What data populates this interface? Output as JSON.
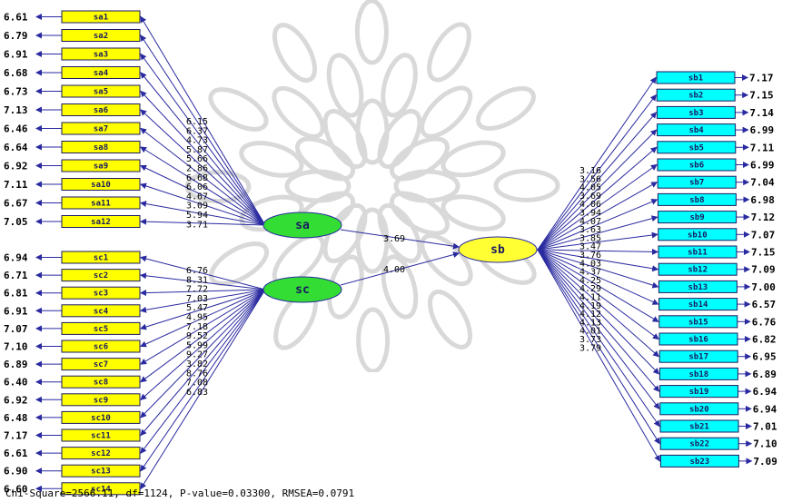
{
  "colors": {
    "sa_box": "#ffff00",
    "sc_box": "#ffff00",
    "sb_box": "#00ffff",
    "sa_node": "#33dd33",
    "sc_node": "#33dd33",
    "sb_node": "#ffff33",
    "arrow": "#2a2aa0",
    "watermark": "#d9d9d9"
  },
  "latents": {
    "sa": "sa",
    "sc": "sc",
    "sb": "sb"
  },
  "paths": {
    "sa_sb": "3.69",
    "sc_sb": "4.00"
  },
  "sa_items": [
    {
      "label": "sa1",
      "error": "6.61",
      "coef": "6.15"
    },
    {
      "label": "sa2",
      "error": "6.79",
      "coef": "6.37"
    },
    {
      "label": "sa3",
      "error": "6.91",
      "coef": "4.73"
    },
    {
      "label": "sa4",
      "error": "6.68",
      "coef": "5.87"
    },
    {
      "label": "sa5",
      "error": "6.73",
      "coef": "5.66"
    },
    {
      "label": "sa6",
      "error": "7.13",
      "coef": "2.86"
    },
    {
      "label": "sa7",
      "error": "6.46",
      "coef": "6.68"
    },
    {
      "label": "sa8",
      "error": "6.64",
      "coef": "6.06"
    },
    {
      "label": "sa9",
      "error": "6.92",
      "coef": "4.67"
    },
    {
      "label": "sa10",
      "error": "7.11",
      "coef": "3.09"
    },
    {
      "label": "sa11",
      "error": "6.67",
      "coef": "5.94"
    },
    {
      "label": "sa12",
      "error": "7.05",
      "coef": "3.71"
    }
  ],
  "sc_items": [
    {
      "label": "sc1",
      "error": "6.94",
      "coef": "6.76"
    },
    {
      "label": "sc2",
      "error": "6.71",
      "coef": "8.31"
    },
    {
      "label": "sc3",
      "error": "6.81",
      "coef": "7.72"
    },
    {
      "label": "sc4",
      "error": "6.91",
      "coef": "7.03"
    },
    {
      "label": "sc5",
      "error": "7.07",
      "coef": "5.47"
    },
    {
      "label": "sc6",
      "error": "7.10",
      "coef": "4.95"
    },
    {
      "label": "sc7",
      "error": "6.89",
      "coef": "7.18"
    },
    {
      "label": "sc8",
      "error": "6.40",
      "coef": "9.52"
    },
    {
      "label": "sc9",
      "error": "6.92",
      "coef": "5.99"
    },
    {
      "label": "sc10",
      "error": "6.48",
      "coef": "9.27"
    },
    {
      "label": "sc11",
      "error": "7.17",
      "coef": "3.82"
    },
    {
      "label": "sc12",
      "error": "6.61",
      "coef": "8.76"
    },
    {
      "label": "sc13",
      "error": "6.90",
      "coef": "7.08"
    },
    {
      "label": "sc14",
      "error": "6.60",
      "coef": "6.83"
    }
  ],
  "sb_items": [
    {
      "label": "sb1",
      "error": "7.17",
      "coef": "3.16"
    },
    {
      "label": "sb2",
      "error": "7.15",
      "coef": "3.56"
    },
    {
      "label": "sb3",
      "error": "7.14",
      "coef": "4.05"
    },
    {
      "label": "sb4",
      "error": "6.99",
      "coef": "3.69"
    },
    {
      "label": "sb5",
      "error": "7.11",
      "coef": "4.06"
    },
    {
      "label": "sb6",
      "error": "6.99",
      "coef": "3.94"
    },
    {
      "label": "sb7",
      "error": "7.04",
      "coef": "4.07"
    },
    {
      "label": "sb8",
      "error": "6.98",
      "coef": "3.63"
    },
    {
      "label": "sb9",
      "error": "7.12",
      "coef": "3.85"
    },
    {
      "label": "sb10",
      "error": "7.07",
      "coef": "3.47"
    },
    {
      "label": "sb11",
      "error": "7.15",
      "coef": "3.76"
    },
    {
      "label": "sb12",
      "error": "7.09",
      "coef": "4.03"
    },
    {
      "label": "sb13",
      "error": "7.00",
      "coef": "4.37"
    },
    {
      "label": "sb14",
      "error": "6.57",
      "coef": "4.25"
    },
    {
      "label": "sb15",
      "error": "6.76",
      "coef": "4.29"
    },
    {
      "label": "sb16",
      "error": "6.82",
      "coef": "4.11"
    },
    {
      "label": "sb17",
      "error": "6.95",
      "coef": "4.19"
    },
    {
      "label": "sb18",
      "error": "6.89",
      "coef": "4.12"
    },
    {
      "label": "sb19",
      "error": "6.94",
      "coef": "4.13"
    },
    {
      "label": "sb20",
      "error": "6.94",
      "coef": "4.01"
    },
    {
      "label": "sb21",
      "error": "7.01",
      "coef": "3.73"
    },
    {
      "label": "sb22",
      "error": "7.10",
      "coef": "3.79"
    },
    {
      "label": "sb23",
      "error": "7.09",
      "coef": ""
    }
  ],
  "fit_stats": "Chi-Square=2566.11, df=1124, P-value=0.03300, RMSEA=0.0791"
}
